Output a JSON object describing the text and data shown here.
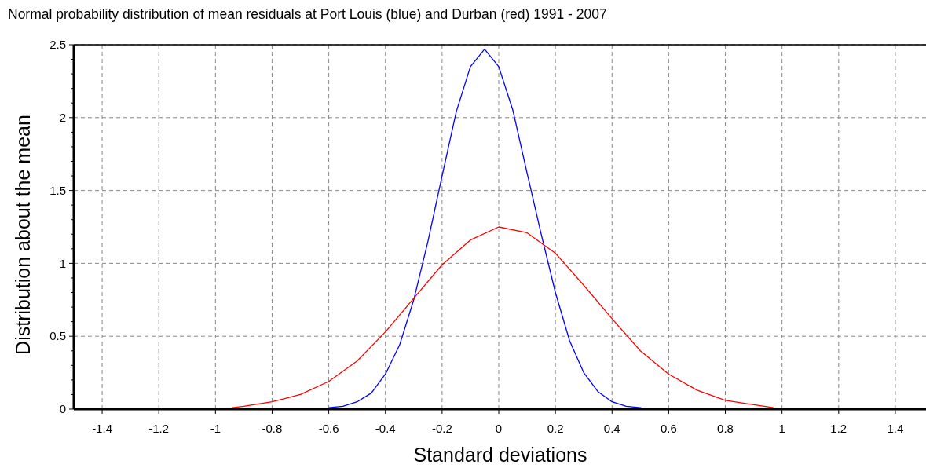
{
  "chart_data": {
    "type": "line",
    "title": "Normal probability distribution of mean residuals at Port Louis (blue) and Durban (red) 1991 - 2007",
    "xlabel": "Standard deviations",
    "ylabel": "Distribution about the mean",
    "xlim": [
      -1.5,
      1.5
    ],
    "xticks": [
      -1.4,
      -1.2,
      -1,
      -0.8,
      -0.6,
      -0.4,
      -0.2,
      0,
      0.2,
      0.4,
      0.6,
      0.8,
      1,
      1.2,
      1.4
    ],
    "ylim": [
      0,
      2.5
    ],
    "yticks": [
      0,
      {
        "value": 0.1,
        "label": null
      },
      {
        "value": 0.2,
        "label": null
      },
      {
        "value": 0.3,
        "label": null
      },
      {
        "value": 0.4,
        "label": null
      },
      0.5,
      {
        "value": 0.6,
        "label": null
      },
      {
        "value": 0.7,
        "label": null
      },
      {
        "value": 0.8,
        "label": null
      },
      {
        "value": 0.9,
        "label": null
      },
      1,
      {
        "value": 1.1,
        "label": null
      },
      {
        "value": 1.2,
        "label": null
      },
      {
        "value": 1.3,
        "label": null
      },
      {
        "value": 1.4,
        "label": null
      },
      1.5,
      {
        "value": 1.6,
        "label": null
      },
      {
        "value": 1.7,
        "label": null
      },
      {
        "value": 1.8,
        "label": null
      },
      {
        "value": 1.9,
        "label": null
      },
      2,
      {
        "value": 2.1,
        "label": null
      },
      {
        "value": 2.2,
        "label": null
      },
      {
        "value": 2.3,
        "label": null
      },
      {
        "value": 2.4,
        "label": null
      },
      2.5
    ],
    "grid": true,
    "series": [
      {
        "color": "#0000ff",
        "x": [
          -0.6,
          -0.55,
          -0.5,
          -0.45,
          -0.4,
          -0.35,
          -0.3,
          -0.25,
          -0.2,
          -0.15,
          -0.1,
          -0.05,
          0,
          0.05,
          0.1,
          0.15,
          0.2,
          0.25,
          0.3,
          0.35,
          0.4,
          0.45,
          0.5,
          0.52
        ],
        "values": [
          0.01,
          0.02,
          0.05,
          0.11,
          0.24,
          0.44,
          0.75,
          1.15,
          1.6,
          2.04,
          2.35,
          2.47,
          2.35,
          2.05,
          1.62,
          1.2,
          0.8,
          0.47,
          0.25,
          0.12,
          0.05,
          0.02,
          0.01,
          0
        ]
      },
      {
        "color": "#ff0000",
        "x": [
          -0.94,
          -0.9,
          -0.8,
          -0.7,
          -0.6,
          -0.5,
          -0.4,
          -0.3,
          -0.2,
          -0.1,
          0,
          0.1,
          0.2,
          0.3,
          0.4,
          0.5,
          0.6,
          0.7,
          0.8,
          0.9,
          0.97
        ],
        "values": [
          0.01,
          0.02,
          0.05,
          0.1,
          0.19,
          0.33,
          0.53,
          0.76,
          0.99,
          1.16,
          1.25,
          1.21,
          1.07,
          0.85,
          0.62,
          0.4,
          0.24,
          0.13,
          0.06,
          0.03,
          0.01
        ]
      }
    ]
  }
}
